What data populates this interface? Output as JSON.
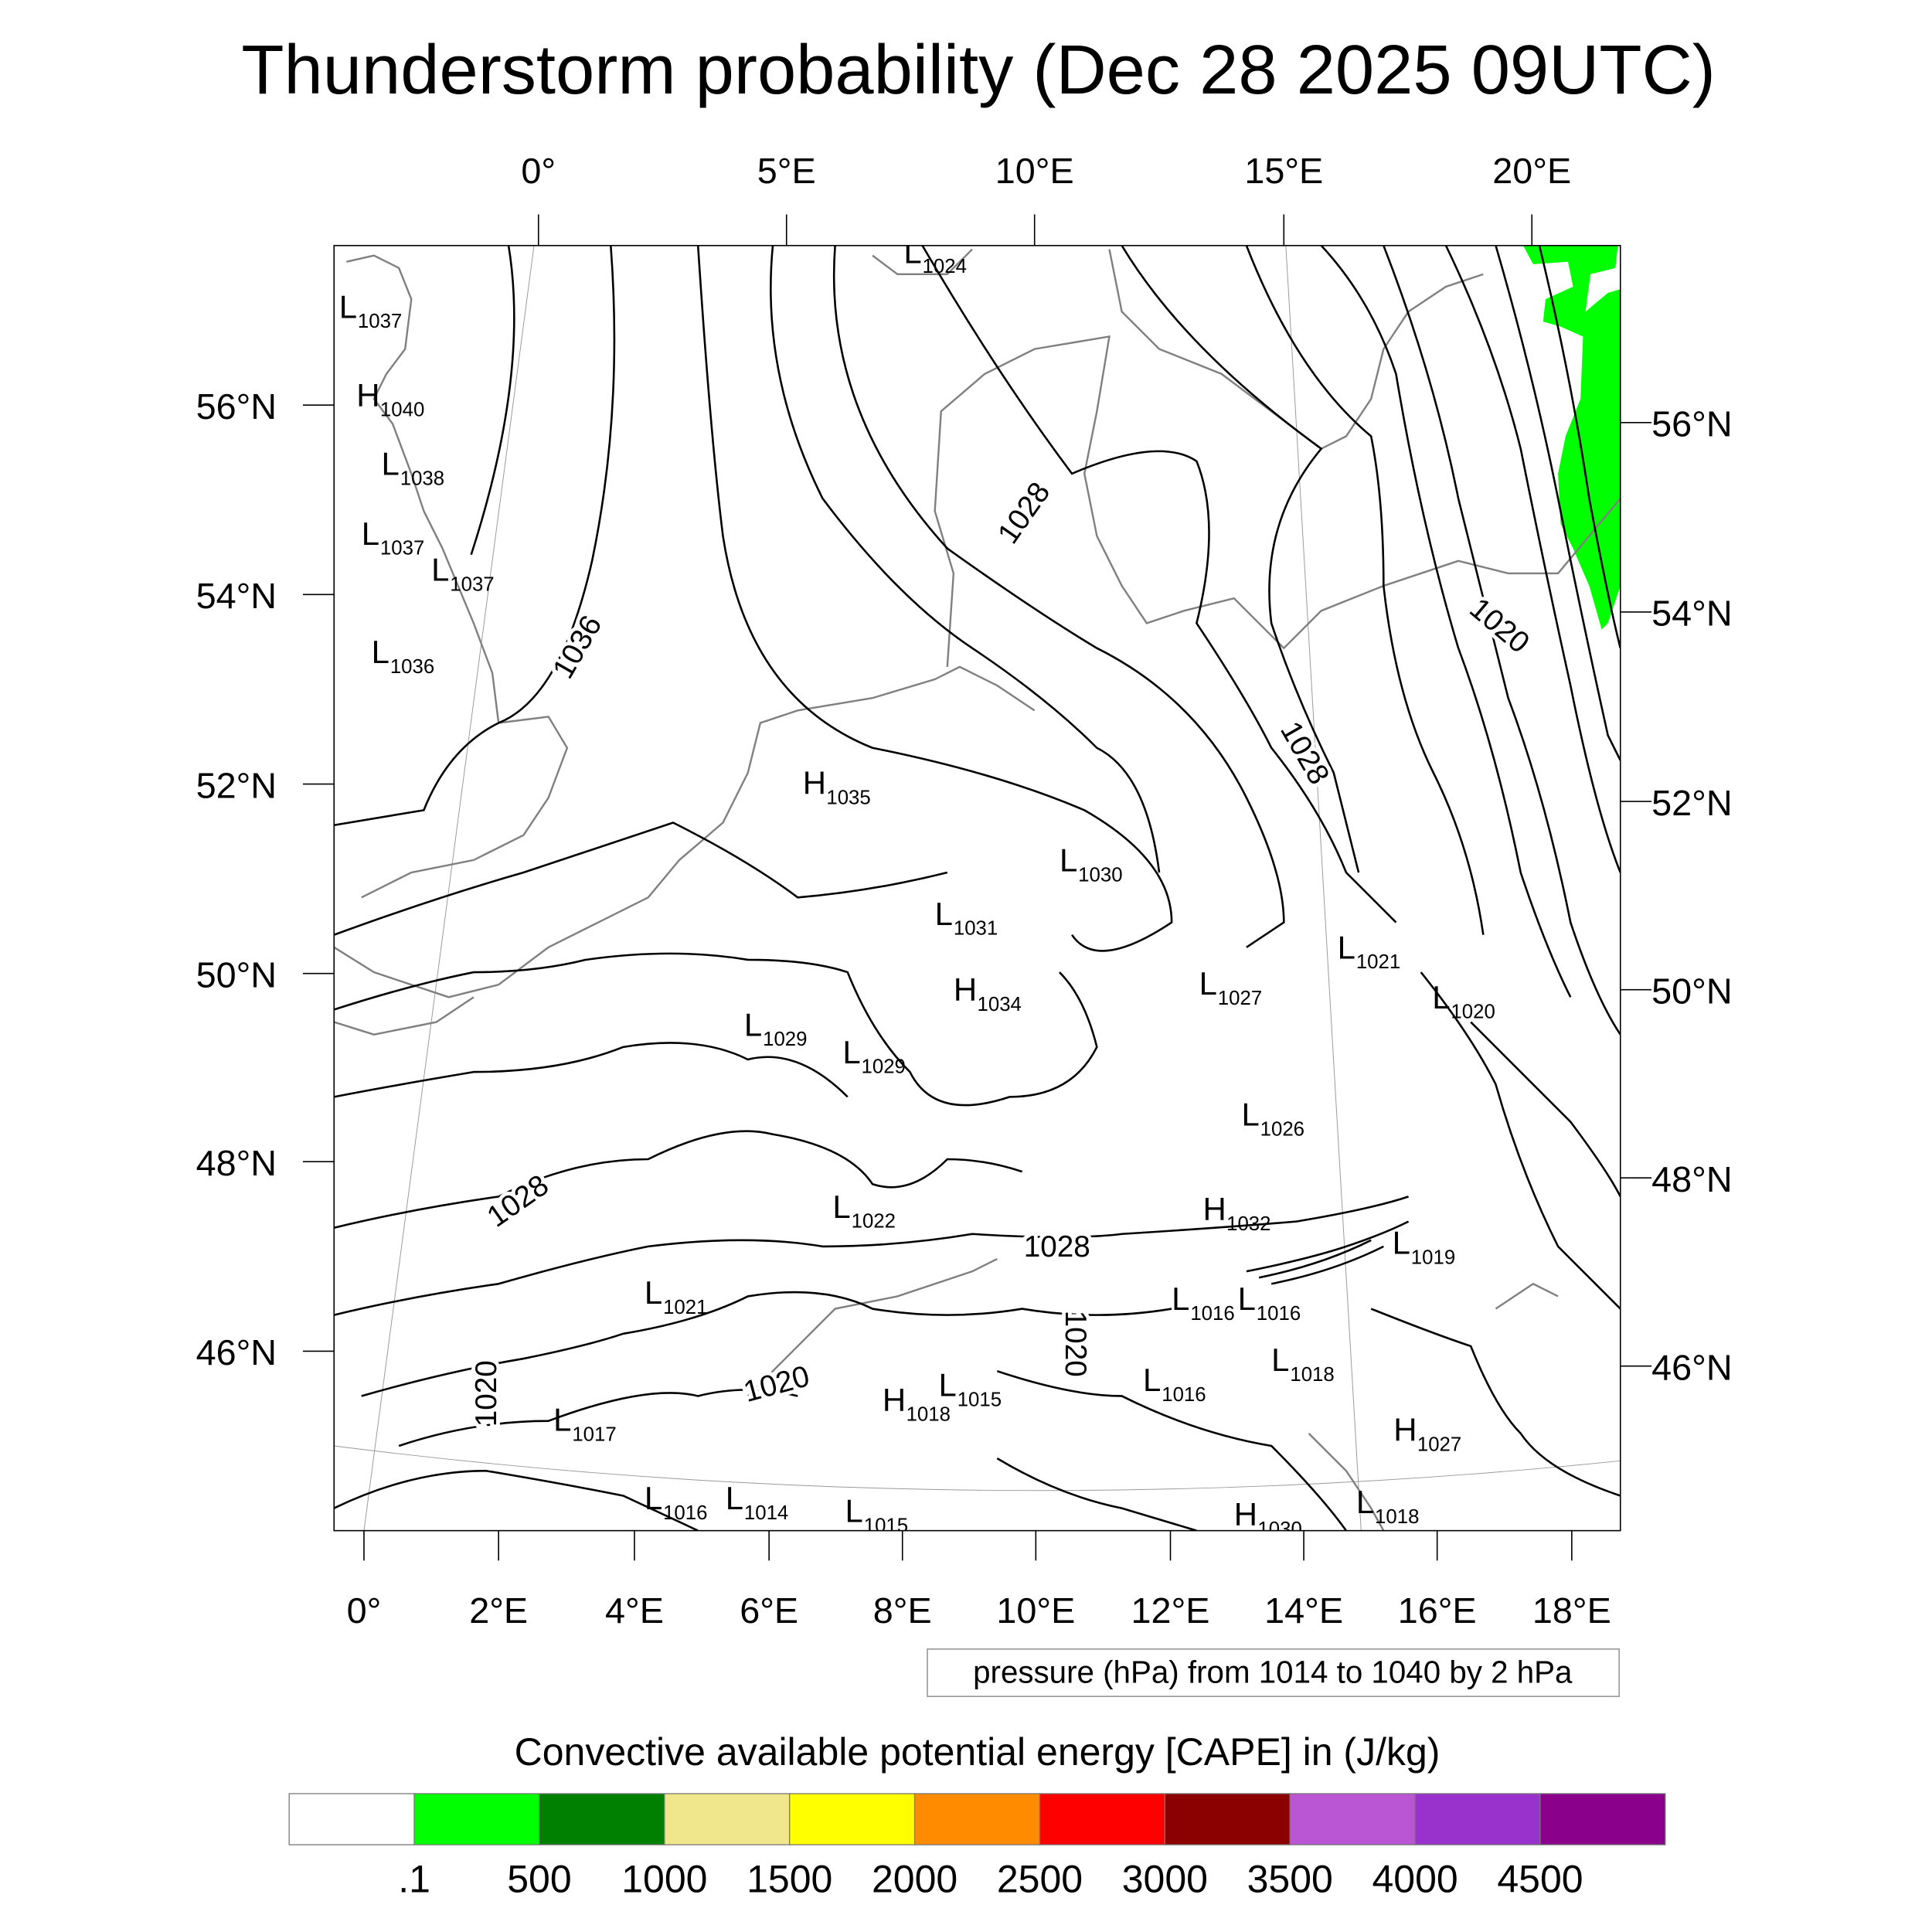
{
  "title": "Thunderstorm probability (Dec 28 2025 09UTC)",
  "top_lon_labels": [
    "0°",
    "5°E",
    "10°E",
    "15°E",
    "20°E"
  ],
  "left_lat_labels": [
    "56°N",
    "54°N",
    "52°N",
    "50°N",
    "48°N",
    "46°N"
  ],
  "right_lat_labels": [
    "56°N",
    "54°N",
    "52°N",
    "50°N",
    "48°N",
    "46°N"
  ],
  "bottom_lon_labels": [
    "0°",
    "2°E",
    "4°E",
    "6°E",
    "8°E",
    "10°E",
    "12°E",
    "14°E",
    "16°E",
    "18°E"
  ],
  "contour_line_labels": [
    "1036",
    "1028",
    "1028",
    "1020",
    "1028",
    "1028",
    "1020",
    "1020",
    "1020"
  ],
  "pressure_centers": [
    {
      "t": "L",
      "v": "1024"
    },
    {
      "t": "L",
      "v": "1037"
    },
    {
      "t": "H",
      "v": "1040"
    },
    {
      "t": "L",
      "v": "1038"
    },
    {
      "t": "L",
      "v": "1037"
    },
    {
      "t": "L",
      "v": "1037"
    },
    {
      "t": "L",
      "v": "1036"
    },
    {
      "t": "H",
      "v": "1035"
    },
    {
      "t": "L",
      "v": "1030"
    },
    {
      "t": "L",
      "v": "1031"
    },
    {
      "t": "H",
      "v": "1034"
    },
    {
      "t": "L",
      "v": "1021"
    },
    {
      "t": "L",
      "v": "1020"
    },
    {
      "t": "L",
      "v": "1027"
    },
    {
      "t": "L",
      "v": "1029"
    },
    {
      "t": "L",
      "v": "1029"
    },
    {
      "t": "L",
      "v": "1026"
    },
    {
      "t": "L",
      "v": "1022"
    },
    {
      "t": "H",
      "v": "1032"
    },
    {
      "t": "L",
      "v": "1019"
    },
    {
      "t": "L",
      "v": "1021"
    },
    {
      "t": "L",
      "v": "1016"
    },
    {
      "t": "L",
      "v": "1016"
    },
    {
      "t": "L",
      "v": "1018"
    },
    {
      "t": "L",
      "v": "1016"
    },
    {
      "t": "H",
      "v": "1018"
    },
    {
      "t": "L",
      "v": "1015"
    },
    {
      "t": "L",
      "v": "1017"
    },
    {
      "t": "H",
      "v": "1027"
    },
    {
      "t": "L",
      "v": "1016"
    },
    {
      "t": "L",
      "v": "1014"
    },
    {
      "t": "L",
      "v": "1015"
    },
    {
      "t": "H",
      "v": "1030"
    },
    {
      "t": "L",
      "v": "1018"
    }
  ],
  "contour_info": "pressure (hPa) from 1014 to 1040 by 2 hPa",
  "colorbar": {
    "title": "Convective available potential energy [CAPE] in (J/kg)",
    "colors": [
      "#ffffff",
      "#00ff00",
      "#008000",
      "#f0e68c",
      "#ffff00",
      "#ff8c00",
      "#ff0000",
      "#8b0000",
      "#ba55d3",
      "#9932cc",
      "#8b008b"
    ],
    "labels": [
      ".1",
      "500",
      "1000",
      "1500",
      "2000",
      "2500",
      "3000",
      "3500",
      "4000",
      "4500"
    ]
  },
  "cape_fill_color": "#00ff00"
}
